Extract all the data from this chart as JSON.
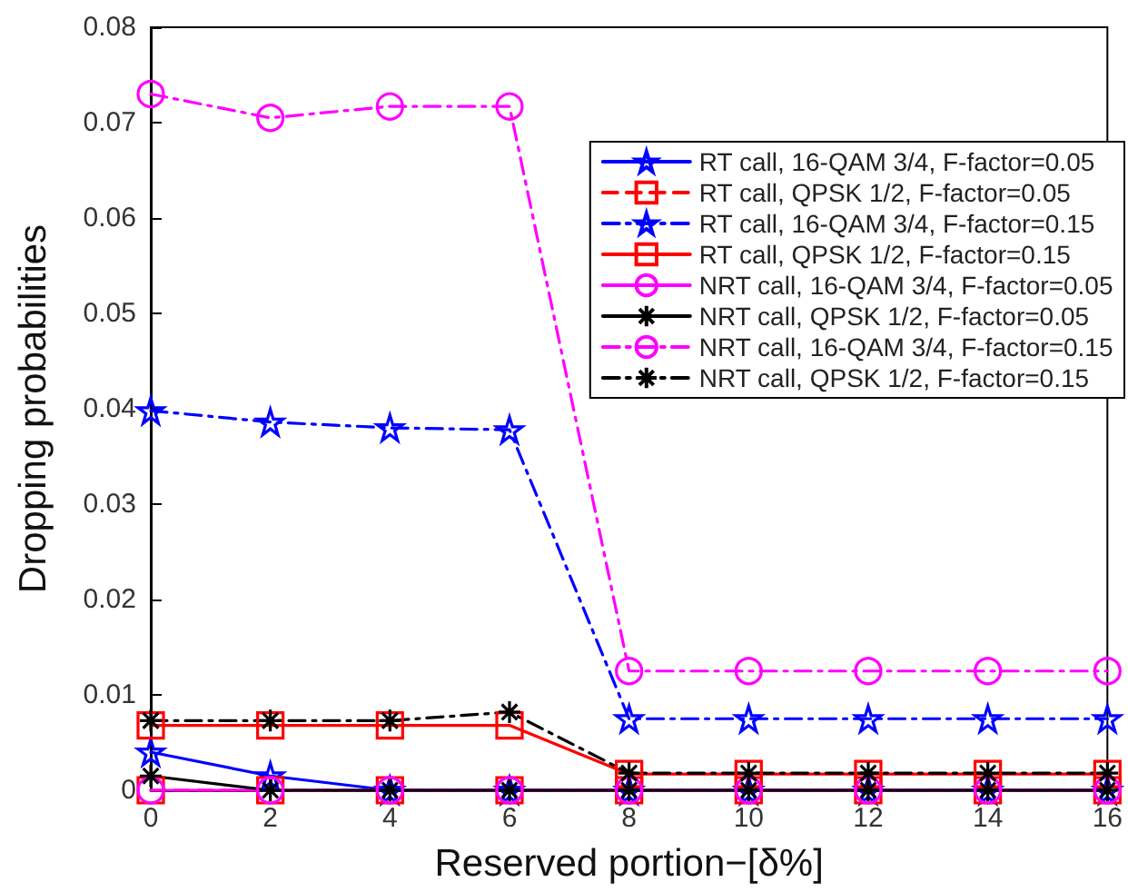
{
  "chart_data": {
    "type": "line",
    "xlabel": "Reserved portion−[δ%]",
    "ylabel": "Dropping probabilities",
    "x": [
      0,
      2,
      4,
      6,
      8,
      10,
      12,
      14,
      16
    ],
    "xlim": [
      0,
      16
    ],
    "xticks": [
      0,
      2,
      4,
      6,
      8,
      10,
      12,
      14,
      16
    ],
    "ylim": [
      0,
      0.08
    ],
    "yticks": [
      0,
      0.01,
      0.02,
      0.03,
      0.04,
      0.05,
      0.06,
      0.07,
      0.08
    ],
    "legend": "top right",
    "series": [
      {
        "name": "RT call, 16-QAM 3/4, F-factor=0.05",
        "color": "#0000ff",
        "marker": "star",
        "line_style": "solid",
        "values": [
          0.004,
          0.0015,
          0,
          0,
          0,
          0,
          0,
          0,
          0
        ]
      },
      {
        "name": "RT call, QPSK 1/2, F-factor=0.05",
        "color": "#ff0000",
        "marker": "square",
        "line_style": "dashed",
        "values": [
          0,
          0,
          0,
          0,
          0,
          0,
          0,
          0,
          0
        ]
      },
      {
        "name": "RT call, 16-QAM 3/4, F-factor=0.15",
        "color": "#0000ff",
        "marker": "star",
        "line_style": "dashdot",
        "values": [
          0.0398,
          0.0386,
          0.038,
          0.0378,
          0.0075,
          0.0075,
          0.0075,
          0.0075,
          0.0075
        ]
      },
      {
        "name": "RT call, QPSK 1/2, F-factor=0.15",
        "color": "#ff0000",
        "marker": "square",
        "line_style": "solid",
        "values": [
          0.0068,
          0.0068,
          0.0068,
          0.0068,
          0.0017,
          0.0017,
          0.0017,
          0.0017,
          0.0017
        ]
      },
      {
        "name": "NRT call, 16-QAM 3/4, F-factor=0.05",
        "color": "#ff00ff",
        "marker": "circle",
        "line_style": "solid",
        "values": [
          0,
          0,
          0,
          0,
          0,
          0,
          0,
          0,
          0
        ]
      },
      {
        "name": "NRT call, QPSK 1/2, F-factor=0.05",
        "color": "#000000",
        "marker": "cross",
        "line_style": "solid",
        "values": [
          0.0015,
          0,
          0,
          0,
          0,
          0,
          0,
          0,
          0
        ]
      },
      {
        "name": "NRT call, 16-QAM 3/4, F-factor=0.15",
        "color": "#ff00ff",
        "marker": "circle",
        "line_style": "dashdot",
        "values": [
          0.073,
          0.0705,
          0.0717,
          0.0717,
          0.0125,
          0.0125,
          0.0125,
          0.0125,
          0.0125
        ]
      },
      {
        "name": "NRT call, QPSK 1/2, F-factor=0.15",
        "color": "#000000",
        "marker": "cross",
        "line_style": "dashdot",
        "values": [
          0.0073,
          0.0073,
          0.0073,
          0.0082,
          0.0018,
          0.0018,
          0.0018,
          0.0018,
          0.0018
        ]
      }
    ]
  }
}
